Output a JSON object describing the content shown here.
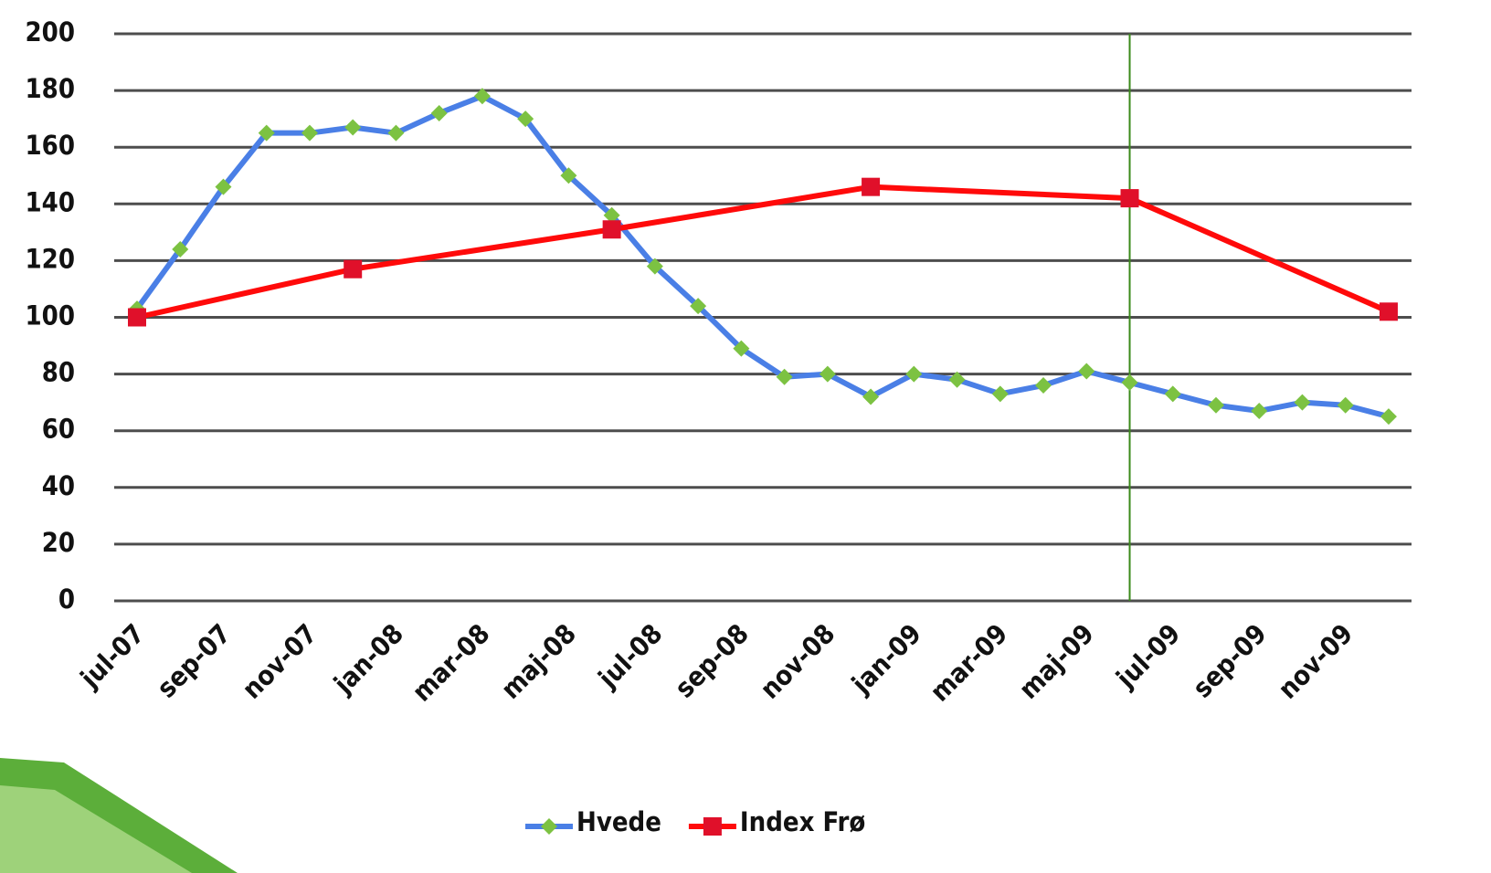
{
  "chart_data": {
    "type": "line",
    "categories": [
      "jul-07",
      null,
      "sep-07",
      null,
      "nov-07",
      null,
      "jan-08",
      null,
      "mar-08",
      null,
      "maj-08",
      null,
      "jul-08",
      null,
      "sep-08",
      null,
      "nov-08",
      null,
      "jan-09",
      null,
      "mar-09",
      null,
      "maj-09",
      null,
      "jul-09",
      null,
      "sep-09",
      null,
      "nov-09",
      null
    ],
    "series": [
      {
        "name": "Hvede",
        "color": "#4a7fe6",
        "marker_color": "#7cc242",
        "marker": "diamond",
        "values": [
          103,
          124,
          146,
          165,
          165,
          167,
          165,
          172,
          178,
          170,
          150,
          136,
          118,
          104,
          89,
          79,
          80,
          72,
          80,
          78,
          73,
          76,
          81,
          77,
          73,
          69,
          67,
          70,
          69,
          65
        ]
      },
      {
        "name": "Index Frø",
        "color": "#ff0a0a",
        "marker_color": "#e0102a",
        "marker": "square",
        "values": [
          100,
          null,
          null,
          null,
          null,
          117,
          null,
          null,
          null,
          null,
          null,
          131,
          null,
          null,
          null,
          null,
          null,
          146,
          null,
          null,
          null,
          null,
          null,
          142,
          null,
          null,
          null,
          null,
          null,
          102
        ]
      }
    ],
    "ylim": [
      0,
      200
    ],
    "yticks": [
      0,
      20,
      40,
      60,
      80,
      100,
      120,
      140,
      160,
      180,
      200
    ],
    "grid": true,
    "vertical_line": {
      "index": 23,
      "color": "#3a8a1a"
    },
    "legend": "bottom"
  }
}
